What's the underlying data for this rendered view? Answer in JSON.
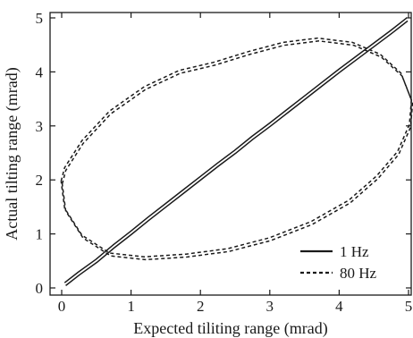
{
  "chart_data": {
    "type": "line",
    "title": "",
    "xlabel": "Expected tiliting range (mrad)",
    "ylabel": "Actual tilting range (mrad)",
    "xlim": [
      0,
      5
    ],
    "ylim": [
      0,
      5
    ],
    "xticks": [
      "0",
      "1",
      "2",
      "3",
      "4",
      "5"
    ],
    "yticks": [
      "0",
      "1",
      "2",
      "3",
      "4",
      "5"
    ],
    "grid": false,
    "legend_position": "bottom-right",
    "series": [
      {
        "name": "1 Hz",
        "style": "solid",
        "color": "#1a1a1a",
        "points": [
          [
            0.05,
            0.07
          ],
          [
            0.25,
            0.27
          ],
          [
            0.5,
            0.5
          ],
          [
            0.75,
            0.77
          ],
          [
            1.0,
            1.02
          ],
          [
            1.25,
            1.28
          ],
          [
            1.5,
            1.53
          ],
          [
            1.75,
            1.78
          ],
          [
            2.0,
            2.03
          ],
          [
            2.25,
            2.28
          ],
          [
            2.5,
            2.52
          ],
          [
            2.75,
            2.78
          ],
          [
            3.0,
            3.02
          ],
          [
            3.25,
            3.27
          ],
          [
            3.5,
            3.52
          ],
          [
            3.75,
            3.77
          ],
          [
            4.0,
            4.02
          ],
          [
            4.25,
            4.26
          ],
          [
            4.5,
            4.5
          ],
          [
            4.75,
            4.74
          ],
          [
            4.98,
            4.97
          ]
        ]
      },
      {
        "name": "80 Hz",
        "style": "dashed",
        "color": "#1a1a1a",
        "points": [
          [
            0.0,
            1.95
          ],
          [
            0.05,
            2.2
          ],
          [
            0.3,
            2.7
          ],
          [
            0.7,
            3.25
          ],
          [
            1.2,
            3.7
          ],
          [
            1.7,
            4.0
          ],
          [
            2.2,
            4.15
          ],
          [
            2.7,
            4.35
          ],
          [
            3.2,
            4.52
          ],
          [
            3.7,
            4.6
          ],
          [
            4.2,
            4.52
          ],
          [
            4.6,
            4.3
          ],
          [
            4.9,
            3.95
          ],
          [
            5.05,
            3.45
          ],
          [
            5.02,
            3.0
          ],
          [
            4.85,
            2.5
          ],
          [
            4.55,
            2.05
          ],
          [
            4.15,
            1.6
          ],
          [
            3.6,
            1.2
          ],
          [
            3.0,
            0.9
          ],
          [
            2.4,
            0.7
          ],
          [
            1.8,
            0.6
          ],
          [
            1.2,
            0.55
          ],
          [
            0.7,
            0.62
          ],
          [
            0.3,
            0.95
          ],
          [
            0.05,
            1.45
          ],
          [
            0.0,
            1.95
          ]
        ]
      }
    ]
  }
}
